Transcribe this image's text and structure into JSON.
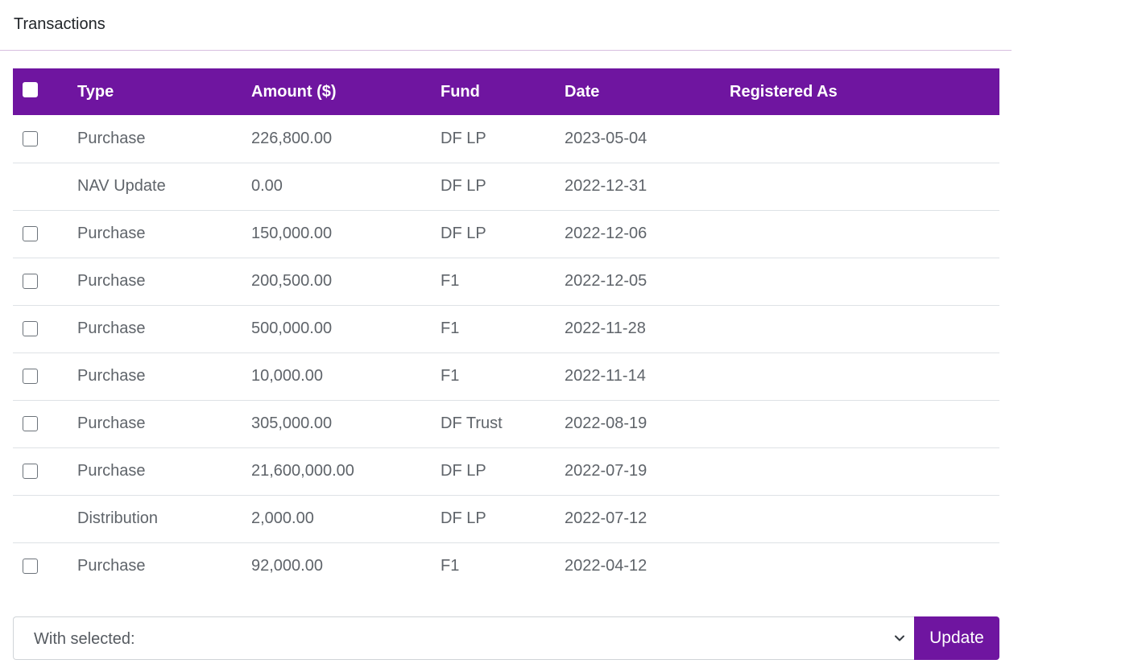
{
  "section": {
    "title": "Transactions"
  },
  "table": {
    "columns": {
      "type": "Type",
      "amount": "Amount ($)",
      "fund": "Fund",
      "date": "Date",
      "registered_as": "Registered As"
    },
    "rows": [
      {
        "selectable": true,
        "type": "Purchase",
        "amount": "226,800.00",
        "fund": "DF LP",
        "date": "2023-05-04",
        "registered_as": ""
      },
      {
        "selectable": false,
        "type": "NAV Update",
        "amount": "0.00",
        "fund": "DF LP",
        "date": "2022-12-31",
        "registered_as": ""
      },
      {
        "selectable": true,
        "type": "Purchase",
        "amount": "150,000.00",
        "fund": "DF LP",
        "date": "2022-12-06",
        "registered_as": ""
      },
      {
        "selectable": true,
        "type": "Purchase",
        "amount": "200,500.00",
        "fund": "F1",
        "date": "2022-12-05",
        "registered_as": ""
      },
      {
        "selectable": true,
        "type": "Purchase",
        "amount": "500,000.00",
        "fund": "F1",
        "date": "2022-11-28",
        "registered_as": ""
      },
      {
        "selectable": true,
        "type": "Purchase",
        "amount": "10,000.00",
        "fund": "F1",
        "date": "2022-11-14",
        "registered_as": ""
      },
      {
        "selectable": true,
        "type": "Purchase",
        "amount": "305,000.00",
        "fund": "DF Trust",
        "date": "2022-08-19",
        "registered_as": ""
      },
      {
        "selectable": true,
        "type": "Purchase",
        "amount": "21,600,000.00",
        "fund": "DF LP",
        "date": "2022-07-19",
        "registered_as": ""
      },
      {
        "selectable": false,
        "type": "Distribution",
        "amount": "2,000.00",
        "fund": "DF LP",
        "date": "2022-07-12",
        "registered_as": ""
      },
      {
        "selectable": true,
        "type": "Purchase",
        "amount": "92,000.00",
        "fund": "F1",
        "date": "2022-04-12",
        "registered_as": ""
      }
    ]
  },
  "bulk_action": {
    "selected_value": "With selected:",
    "chevron_icon": "chevron-down-icon",
    "update_label": "Update"
  },
  "colors": {
    "accent": "#6f15a0",
    "divider": "#dee2e6"
  }
}
